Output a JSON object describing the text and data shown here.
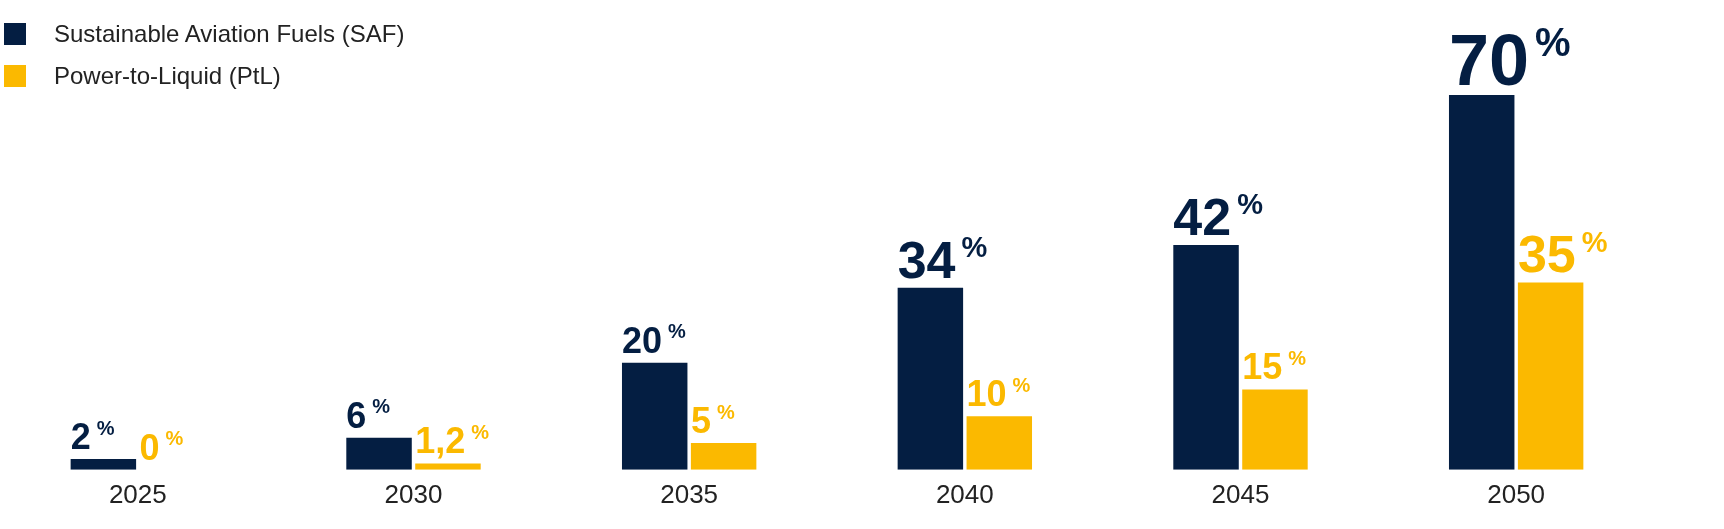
{
  "chart_data": {
    "type": "bar",
    "categories": [
      "2025",
      "2030",
      "2035",
      "2040",
      "2045",
      "2050"
    ],
    "series": [
      {
        "name": "Sustainable Aviation Fuels (SAF)",
        "color": "#041e42",
        "values": [
          2,
          6,
          20,
          34,
          42,
          70
        ],
        "value_labels": [
          "2%",
          "6%",
          "20%",
          "34%",
          "42%",
          "70%"
        ]
      },
      {
        "name": "Power-to-Liquid (PtL)",
        "color": "#fbb900",
        "values": [
          0,
          1.2,
          5,
          10,
          15,
          35
        ],
        "value_labels": [
          "0%",
          "1,2%",
          "5%",
          "10%",
          "15%",
          "35%"
        ]
      }
    ],
    "legend": "top left",
    "grid": false,
    "tick_labels": "x"
  }
}
